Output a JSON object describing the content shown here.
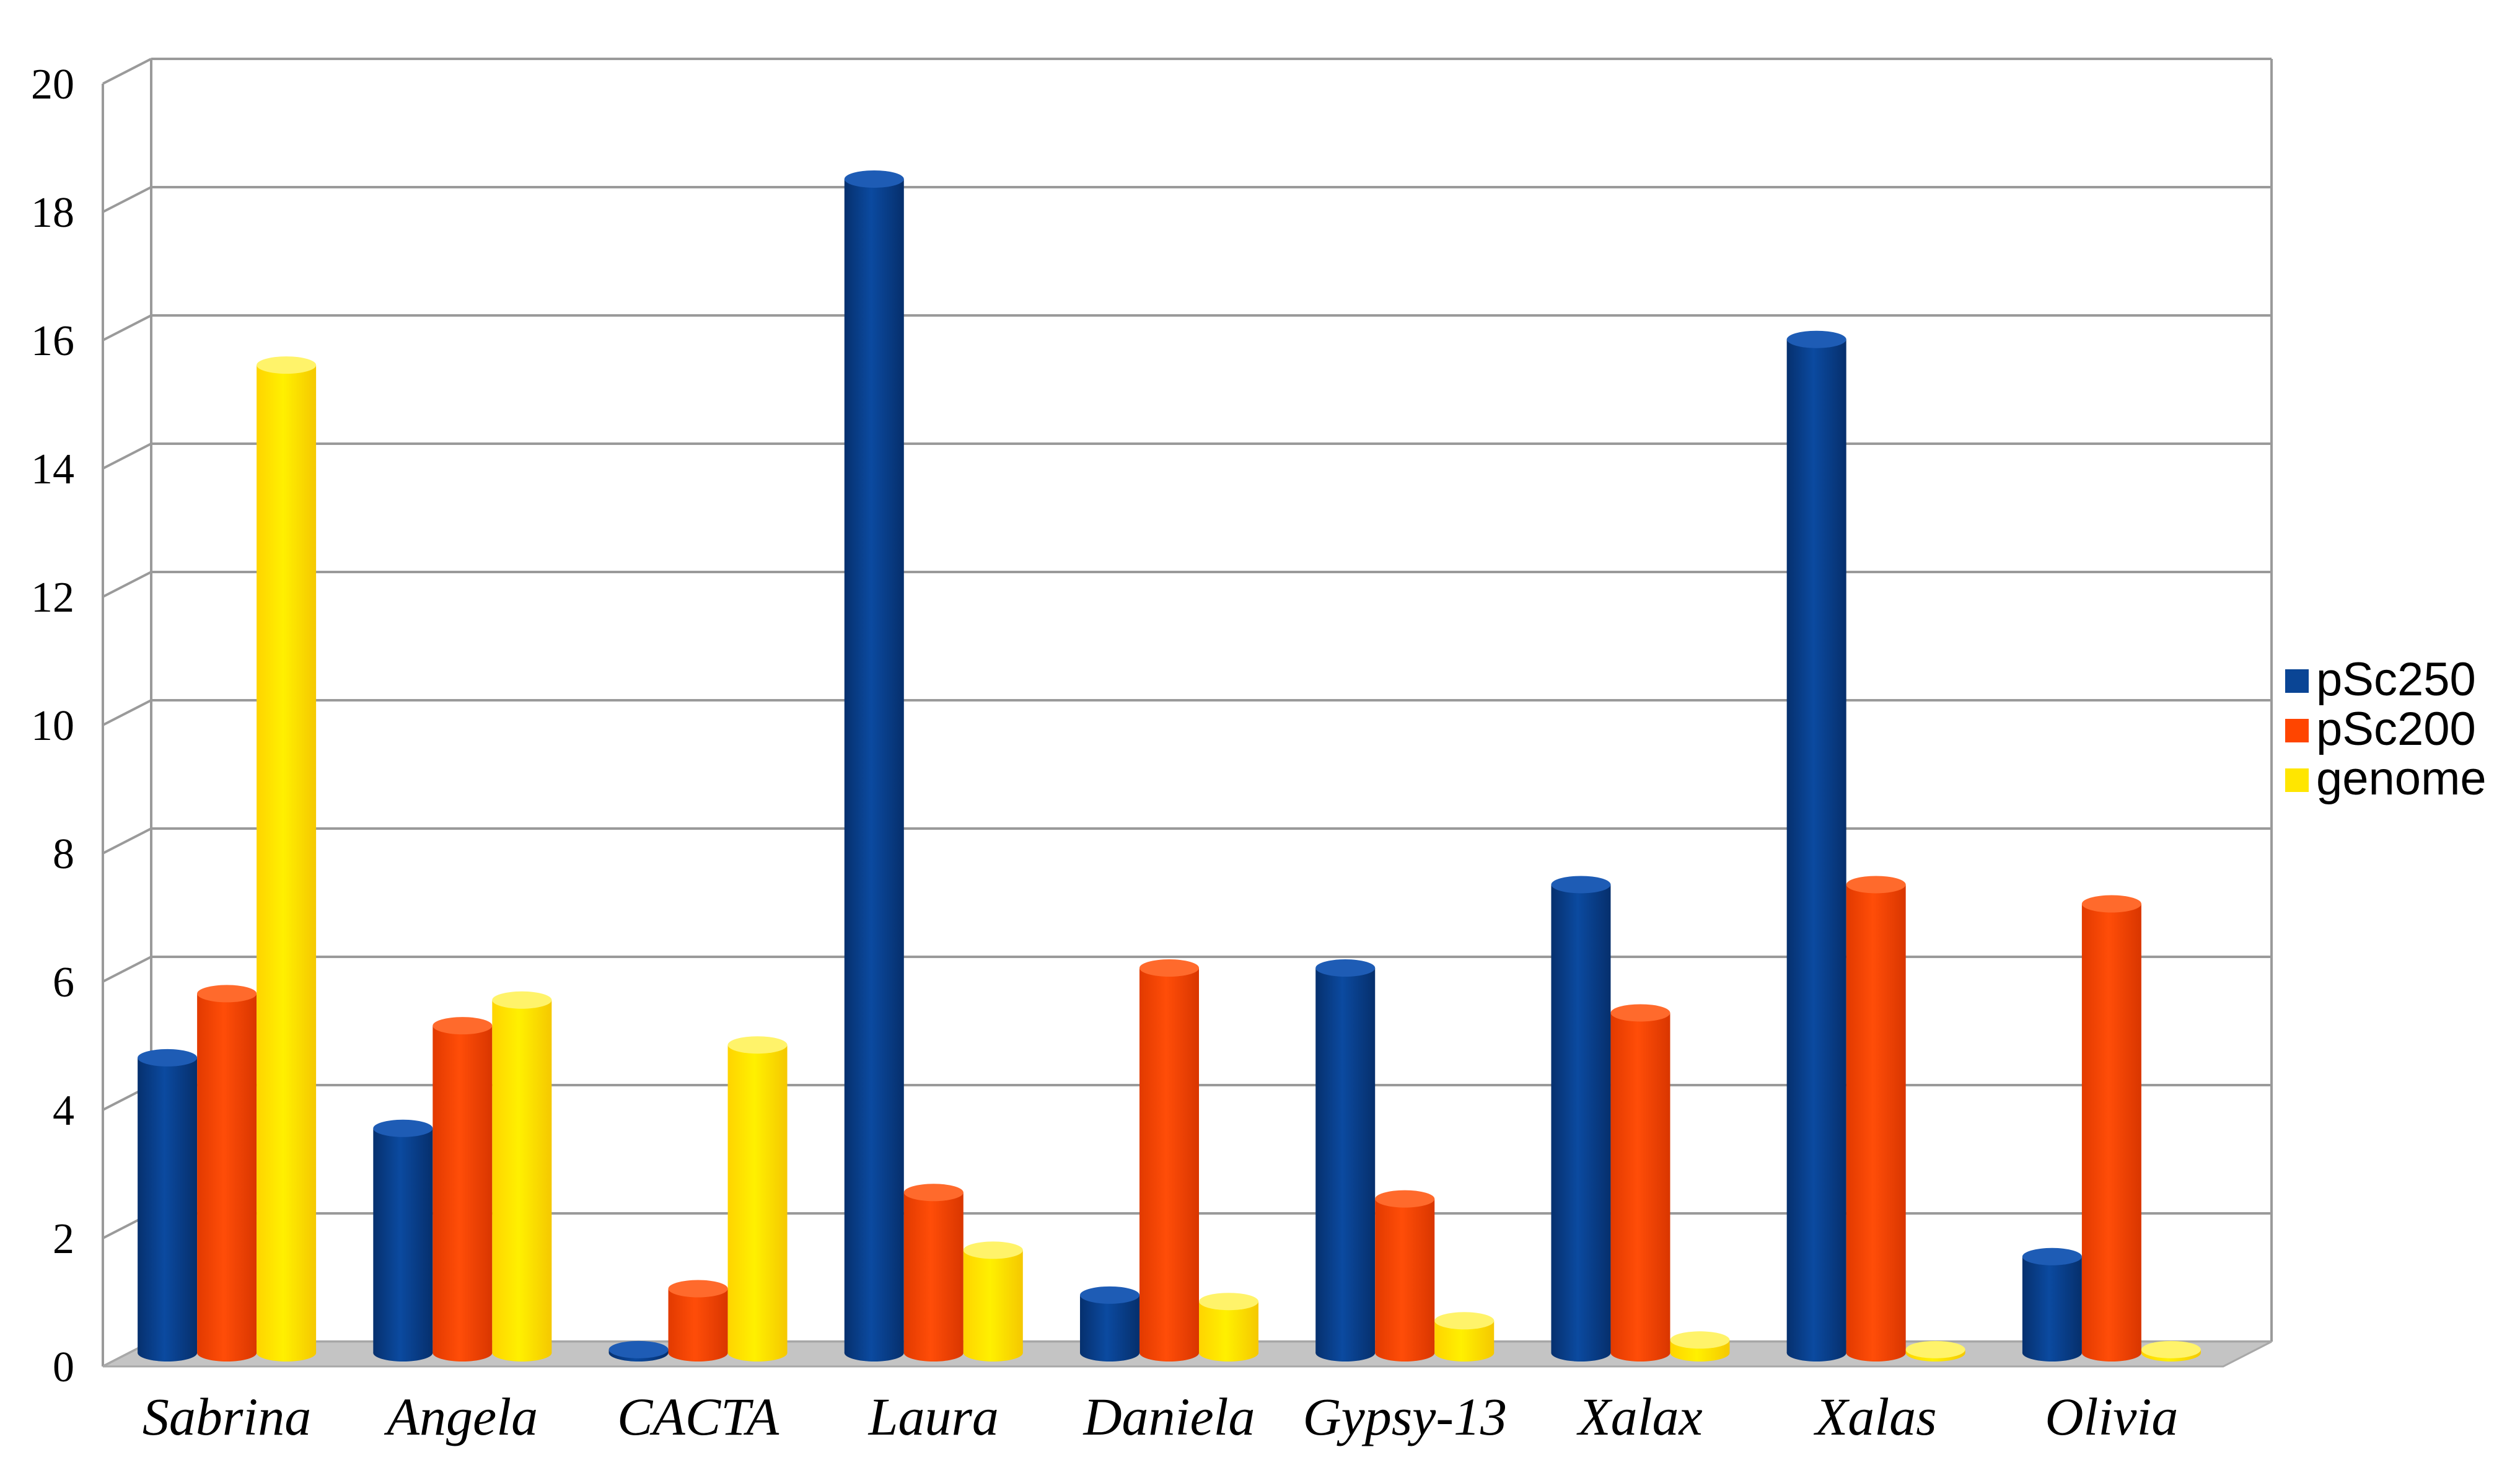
{
  "chart_data": {
    "type": "bar",
    "title": "",
    "xlabel": "",
    "ylabel": "",
    "ylim": [
      0,
      20
    ],
    "yticks": [
      0,
      2,
      4,
      6,
      8,
      10,
      12,
      14,
      16,
      18,
      20
    ],
    "grid": true,
    "legend_position": "right",
    "categories": [
      "Sabrina",
      "Angela",
      "CACTA",
      "Laura",
      "Daniela",
      "Gypsy-13",
      "Xalax",
      "Xalas",
      "Olivia"
    ],
    "series": [
      {
        "name": "pSc250",
        "color": "#0a4595",
        "values": [
          4.6,
          3.5,
          0.05,
          18.3,
          0.9,
          6.0,
          7.3,
          15.8,
          1.5
        ]
      },
      {
        "name": "pSc200",
        "color": "#ff4500",
        "values": [
          5.6,
          5.1,
          1.0,
          2.5,
          6.0,
          2.4,
          5.3,
          7.3,
          7.0
        ]
      },
      {
        "name": "genome",
        "color": "#ffe600",
        "values": [
          15.4,
          5.5,
          4.8,
          1.6,
          0.8,
          0.5,
          0.2,
          0.05,
          0.05
        ]
      }
    ]
  }
}
